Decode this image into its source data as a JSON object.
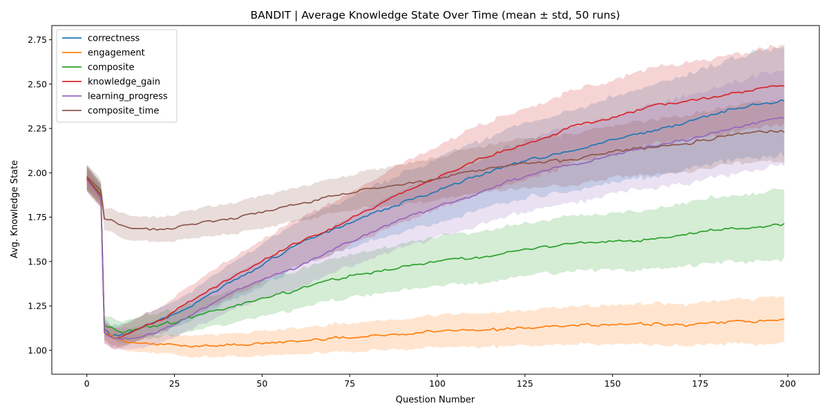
{
  "chart_data": {
    "type": "line",
    "title": "BANDIT | Average Knowledge State Over Time (mean ± std, 50 runs)",
    "xlabel": "Question Number",
    "ylabel": "Avg. Knowledge State",
    "xlim": [
      -10,
      209
    ],
    "ylim": [
      0.865,
      2.83
    ],
    "xticks": [
      0,
      25,
      50,
      75,
      100,
      125,
      150,
      175,
      200
    ],
    "xtick_labels": [
      "0",
      "25",
      "50",
      "75",
      "100",
      "125",
      "150",
      "175",
      "200"
    ],
    "yticks": [
      1.0,
      1.25,
      1.5,
      1.75,
      2.0,
      2.25,
      2.5,
      2.75
    ],
    "ytick_labels": [
      "1.00",
      "1.25",
      "1.50",
      "1.75",
      "2.00",
      "2.25",
      "2.50",
      "2.75"
    ],
    "grid": false,
    "legend_position": "top-left",
    "series": [
      {
        "name": "correctness",
        "color": "#1f77b4",
        "points": [
          [
            0,
            1.97
          ],
          [
            4,
            1.88
          ],
          [
            5,
            1.12
          ],
          [
            7,
            1.08
          ],
          [
            10,
            1.09
          ],
          [
            15,
            1.12
          ],
          [
            20,
            1.17
          ],
          [
            25,
            1.2
          ],
          [
            30,
            1.25
          ],
          [
            40,
            1.38
          ],
          [
            50,
            1.48
          ],
          [
            60,
            1.6
          ],
          [
            70,
            1.68
          ],
          [
            80,
            1.76
          ],
          [
            90,
            1.83
          ],
          [
            100,
            1.9
          ],
          [
            110,
            1.97
          ],
          [
            120,
            2.04
          ],
          [
            130,
            2.09
          ],
          [
            140,
            2.13
          ],
          [
            150,
            2.19
          ],
          [
            160,
            2.23
          ],
          [
            170,
            2.28
          ],
          [
            180,
            2.34
          ],
          [
            190,
            2.38
          ],
          [
            199,
            2.41
          ]
        ],
        "std": [
          [
            0,
            0.07
          ],
          [
            4,
            0.06
          ],
          [
            5,
            0.06
          ],
          [
            10,
            0.06
          ],
          [
            20,
            0.07
          ],
          [
            30,
            0.08
          ],
          [
            50,
            0.12
          ],
          [
            75,
            0.14
          ],
          [
            100,
            0.18
          ],
          [
            125,
            0.21
          ],
          [
            150,
            0.24
          ],
          [
            175,
            0.27
          ],
          [
            199,
            0.31
          ]
        ]
      },
      {
        "name": "engagement",
        "color": "#ff7f0e",
        "points": [
          [
            0,
            1.96
          ],
          [
            4,
            1.86
          ],
          [
            5,
            1.11
          ],
          [
            7,
            1.08
          ],
          [
            10,
            1.05
          ],
          [
            15,
            1.04
          ],
          [
            20,
            1.03
          ],
          [
            25,
            1.03
          ],
          [
            30,
            1.02
          ],
          [
            40,
            1.03
          ],
          [
            50,
            1.04
          ],
          [
            60,
            1.05
          ],
          [
            70,
            1.07
          ],
          [
            80,
            1.08
          ],
          [
            90,
            1.09
          ],
          [
            100,
            1.11
          ],
          [
            110,
            1.11
          ],
          [
            120,
            1.12
          ],
          [
            130,
            1.13
          ],
          [
            140,
            1.14
          ],
          [
            150,
            1.14
          ],
          [
            160,
            1.15
          ],
          [
            170,
            1.14
          ],
          [
            180,
            1.16
          ],
          [
            190,
            1.16
          ],
          [
            199,
            1.17
          ]
        ],
        "std": [
          [
            0,
            0.06
          ],
          [
            5,
            0.05
          ],
          [
            10,
            0.05
          ],
          [
            20,
            0.05
          ],
          [
            30,
            0.06
          ],
          [
            50,
            0.07
          ],
          [
            75,
            0.08
          ],
          [
            100,
            0.09
          ],
          [
            125,
            0.1
          ],
          [
            150,
            0.11
          ],
          [
            175,
            0.12
          ],
          [
            199,
            0.13
          ]
        ]
      },
      {
        "name": "composite",
        "color": "#2ca02c",
        "points": [
          [
            0,
            1.97
          ],
          [
            4,
            1.88
          ],
          [
            5,
            1.14
          ],
          [
            7,
            1.13
          ],
          [
            10,
            1.1
          ],
          [
            15,
            1.12
          ],
          [
            20,
            1.14
          ],
          [
            25,
            1.16
          ],
          [
            30,
            1.19
          ],
          [
            40,
            1.24
          ],
          [
            50,
            1.29
          ],
          [
            60,
            1.34
          ],
          [
            70,
            1.4
          ],
          [
            80,
            1.43
          ],
          [
            90,
            1.47
          ],
          [
            100,
            1.5
          ],
          [
            110,
            1.52
          ],
          [
            120,
            1.55
          ],
          [
            130,
            1.58
          ],
          [
            140,
            1.61
          ],
          [
            150,
            1.61
          ],
          [
            160,
            1.62
          ],
          [
            170,
            1.65
          ],
          [
            180,
            1.68
          ],
          [
            190,
            1.69
          ],
          [
            199,
            1.71
          ]
        ],
        "std": [
          [
            0,
            0.07
          ],
          [
            5,
            0.06
          ],
          [
            10,
            0.06
          ],
          [
            20,
            0.07
          ],
          [
            30,
            0.08
          ],
          [
            50,
            0.1
          ],
          [
            75,
            0.12
          ],
          [
            100,
            0.14
          ],
          [
            125,
            0.15
          ],
          [
            150,
            0.16
          ],
          [
            175,
            0.18
          ],
          [
            199,
            0.2
          ]
        ]
      },
      {
        "name": "knowledge_gain",
        "color": "#d62728",
        "points": [
          [
            0,
            1.97
          ],
          [
            4,
            1.87
          ],
          [
            5,
            1.1
          ],
          [
            7,
            1.07
          ],
          [
            10,
            1.08
          ],
          [
            15,
            1.12
          ],
          [
            20,
            1.16
          ],
          [
            25,
            1.22
          ],
          [
            30,
            1.28
          ],
          [
            40,
            1.4
          ],
          [
            50,
            1.5
          ],
          [
            60,
            1.61
          ],
          [
            70,
            1.69
          ],
          [
            80,
            1.79
          ],
          [
            90,
            1.89
          ],
          [
            100,
            1.97
          ],
          [
            110,
            2.06
          ],
          [
            120,
            2.13
          ],
          [
            130,
            2.19
          ],
          [
            140,
            2.27
          ],
          [
            150,
            2.31
          ],
          [
            160,
            2.37
          ],
          [
            170,
            2.4
          ],
          [
            180,
            2.43
          ],
          [
            190,
            2.47
          ],
          [
            199,
            2.49
          ]
        ],
        "std": [
          [
            0,
            0.07
          ],
          [
            5,
            0.06
          ],
          [
            10,
            0.06
          ],
          [
            20,
            0.07
          ],
          [
            30,
            0.09
          ],
          [
            50,
            0.12
          ],
          [
            75,
            0.15
          ],
          [
            100,
            0.18
          ],
          [
            125,
            0.2
          ],
          [
            150,
            0.21
          ],
          [
            175,
            0.22
          ],
          [
            199,
            0.22
          ]
        ]
      },
      {
        "name": "learning_progress",
        "color": "#9467bd",
        "points": [
          [
            0,
            1.96
          ],
          [
            4,
            1.86
          ],
          [
            5,
            1.1
          ],
          [
            7,
            1.07
          ],
          [
            10,
            1.06
          ],
          [
            15,
            1.07
          ],
          [
            20,
            1.1
          ],
          [
            25,
            1.15
          ],
          [
            30,
            1.2
          ],
          [
            40,
            1.31
          ],
          [
            50,
            1.4
          ],
          [
            60,
            1.47
          ],
          [
            70,
            1.56
          ],
          [
            80,
            1.66
          ],
          [
            90,
            1.74
          ],
          [
            100,
            1.81
          ],
          [
            110,
            1.87
          ],
          [
            120,
            1.95
          ],
          [
            130,
            2.01
          ],
          [
            140,
            2.05
          ],
          [
            150,
            2.1
          ],
          [
            160,
            2.15
          ],
          [
            170,
            2.18
          ],
          [
            180,
            2.23
          ],
          [
            190,
            2.28
          ],
          [
            199,
            2.31
          ]
        ],
        "std": [
          [
            0,
            0.07
          ],
          [
            5,
            0.06
          ],
          [
            10,
            0.06
          ],
          [
            20,
            0.07
          ],
          [
            30,
            0.08
          ],
          [
            50,
            0.11
          ],
          [
            75,
            0.14
          ],
          [
            100,
            0.17
          ],
          [
            125,
            0.2
          ],
          [
            150,
            0.22
          ],
          [
            175,
            0.25
          ],
          [
            199,
            0.27
          ]
        ]
      },
      {
        "name": "composite_time",
        "color": "#8c564b",
        "points": [
          [
            0,
            1.98
          ],
          [
            4,
            1.9
          ],
          [
            5,
            1.74
          ],
          [
            7,
            1.73
          ],
          [
            10,
            1.7
          ],
          [
            15,
            1.68
          ],
          [
            20,
            1.68
          ],
          [
            25,
            1.69
          ],
          [
            30,
            1.71
          ],
          [
            40,
            1.74
          ],
          [
            50,
            1.78
          ],
          [
            60,
            1.82
          ],
          [
            70,
            1.87
          ],
          [
            80,
            1.91
          ],
          [
            90,
            1.93
          ],
          [
            100,
            1.97
          ],
          [
            110,
            2.01
          ],
          [
            120,
            2.04
          ],
          [
            130,
            2.06
          ],
          [
            140,
            2.08
          ],
          [
            150,
            2.12
          ],
          [
            160,
            2.14
          ],
          [
            170,
            2.16
          ],
          [
            180,
            2.2
          ],
          [
            190,
            2.23
          ],
          [
            199,
            2.23
          ]
        ],
        "std": [
          [
            0,
            0.07
          ],
          [
            5,
            0.06
          ],
          [
            10,
            0.07
          ],
          [
            20,
            0.07
          ],
          [
            30,
            0.08
          ],
          [
            50,
            0.09
          ],
          [
            75,
            0.1
          ],
          [
            100,
            0.12
          ],
          [
            125,
            0.14
          ],
          [
            150,
            0.15
          ],
          [
            175,
            0.16
          ],
          [
            199,
            0.17
          ]
        ]
      }
    ]
  }
}
